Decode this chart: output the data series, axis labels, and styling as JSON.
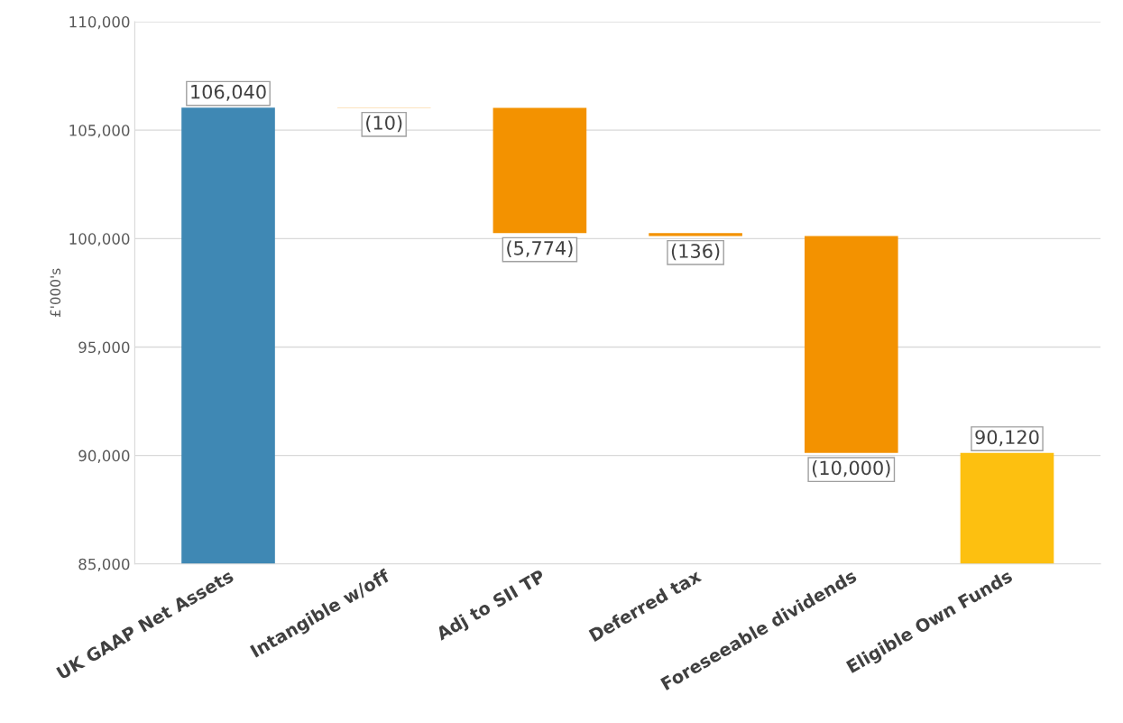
{
  "chart_data": {
    "type": "bar",
    "ylabel": "£'000's",
    "categories": [
      "UK GAAP Net Assets",
      "Intangible w/off",
      "Adj to SII TP",
      "Deferred tax",
      "Foreseeable dividends",
      "Eligible Own Funds"
    ],
    "base": [
      0,
      106040,
      106030,
      100256,
      100120,
      0
    ],
    "values": [
      106040,
      -10,
      -5774,
      -136,
      -10000,
      90120
    ],
    "colors": [
      "#3f88b4",
      "#f39200",
      "#f39200",
      "#f39200",
      "#f39200",
      "#fdc010"
    ],
    "value_labels": [
      "106,040",
      "(10)",
      "(5,774)",
      "(136)",
      "(10,000)",
      "90,120"
    ],
    "ylim": [
      85000,
      110000
    ],
    "yticks": [
      {
        "value": 85000,
        "label": "85,000"
      },
      {
        "value": 90000,
        "label": "90,000"
      },
      {
        "value": 95000,
        "label": "95,000"
      },
      {
        "value": 100000,
        "label": "100,000"
      },
      {
        "value": 105000,
        "label": "105,000"
      },
      {
        "value": 110000,
        "label": "110,000"
      }
    ],
    "grid": "y",
    "legend": false
  }
}
